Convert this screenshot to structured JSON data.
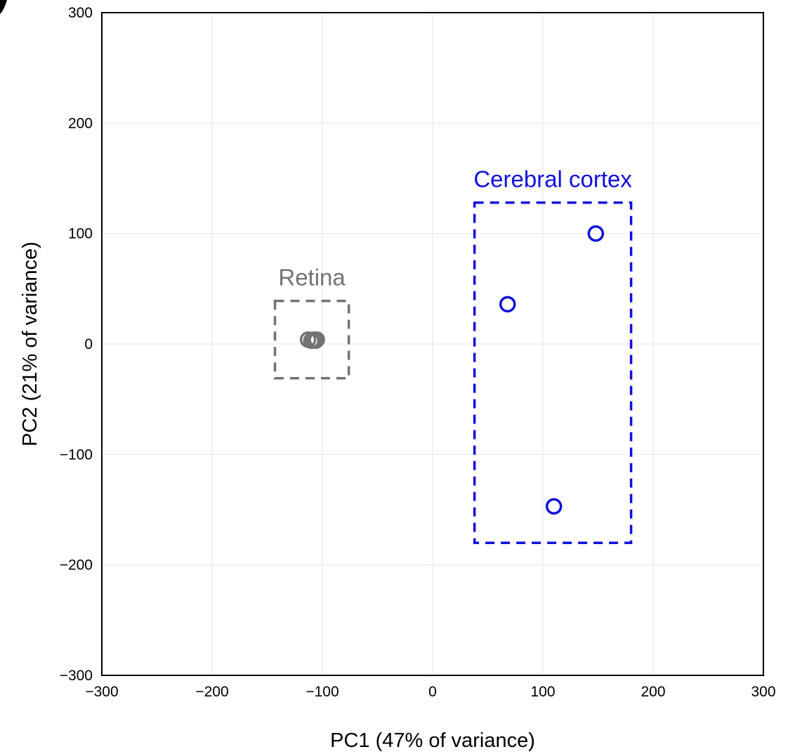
{
  "chart_data": {
    "type": "scatter",
    "title": "",
    "xlabel": "PC1 (47% of variance)",
    "ylabel": "PC2 (21% of variance)",
    "xlim": [
      -300,
      300
    ],
    "ylim": [
      -300,
      300
    ],
    "grid": true,
    "x_ticks": [
      -300,
      -200,
      -100,
      0,
      100,
      200,
      300
    ],
    "y_ticks": [
      -300,
      -200,
      -100,
      0,
      100,
      200,
      300
    ],
    "x_tick_labels": [
      "−300",
      "−200",
      "−100",
      "0",
      "100",
      "200",
      "300"
    ],
    "y_tick_labels": [
      "−300",
      "−200",
      "−100",
      "0",
      "100",
      "200",
      "300"
    ],
    "groups": [
      {
        "name": "Retina",
        "color": "#737373",
        "box": {
          "x": [
            -143,
            -76
          ],
          "y": [
            -31,
            39
          ]
        },
        "points": [
          {
            "x": -113,
            "y": 4
          },
          {
            "x": -110,
            "y": 3
          },
          {
            "x": -108,
            "y": 4
          },
          {
            "x": -106,
            "y": 3
          },
          {
            "x": -105,
            "y": 4
          }
        ]
      },
      {
        "name": "Cerebral cortex",
        "color": "#1010dd",
        "box": {
          "x": [
            38,
            180
          ],
          "y": [
            -180,
            128
          ]
        },
        "points": [
          {
            "x": 148,
            "y": 100
          },
          {
            "x": 68,
            "y": 36
          },
          {
            "x": 110,
            "y": -147
          }
        ]
      }
    ]
  }
}
